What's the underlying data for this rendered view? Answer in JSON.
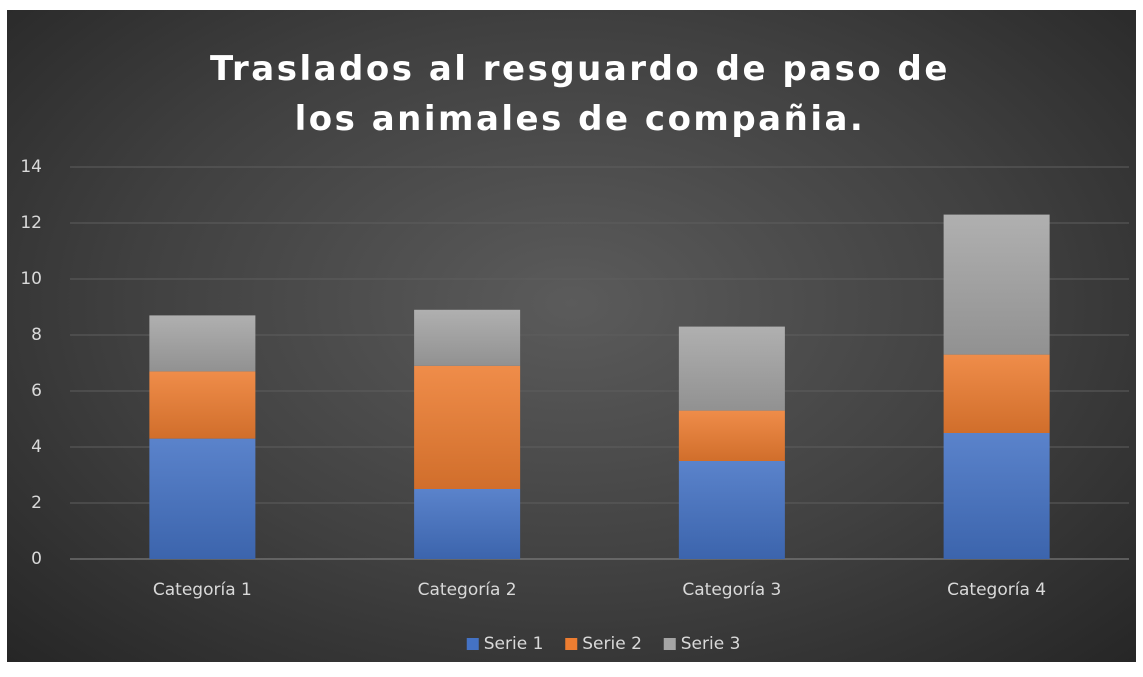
{
  "chart_data": {
    "type": "stacked_bar",
    "title": "Traslados al resguardo de paso de los animales de compañia.",
    "categories": [
      "Categoría 1",
      "Categoría 2",
      "Categoría 3",
      "Categoría 4"
    ],
    "series": [
      {
        "name": "Serie 1",
        "color": "#4472c4",
        "values": [
          4.3,
          2.5,
          3.5,
          4.5
        ]
      },
      {
        "name": "Serie 2",
        "color": "#ed7d31",
        "values": [
          2.4,
          4.4,
          1.8,
          2.8
        ]
      },
      {
        "name": "Serie 3",
        "color": "#a5a5a5",
        "values": [
          2,
          2,
          3,
          5
        ]
      }
    ],
    "ylim": [
      0,
      14
    ],
    "yticks": [
      0,
      2,
      4,
      6,
      8,
      10,
      12,
      14
    ],
    "grid": true,
    "legend": "bottom"
  }
}
